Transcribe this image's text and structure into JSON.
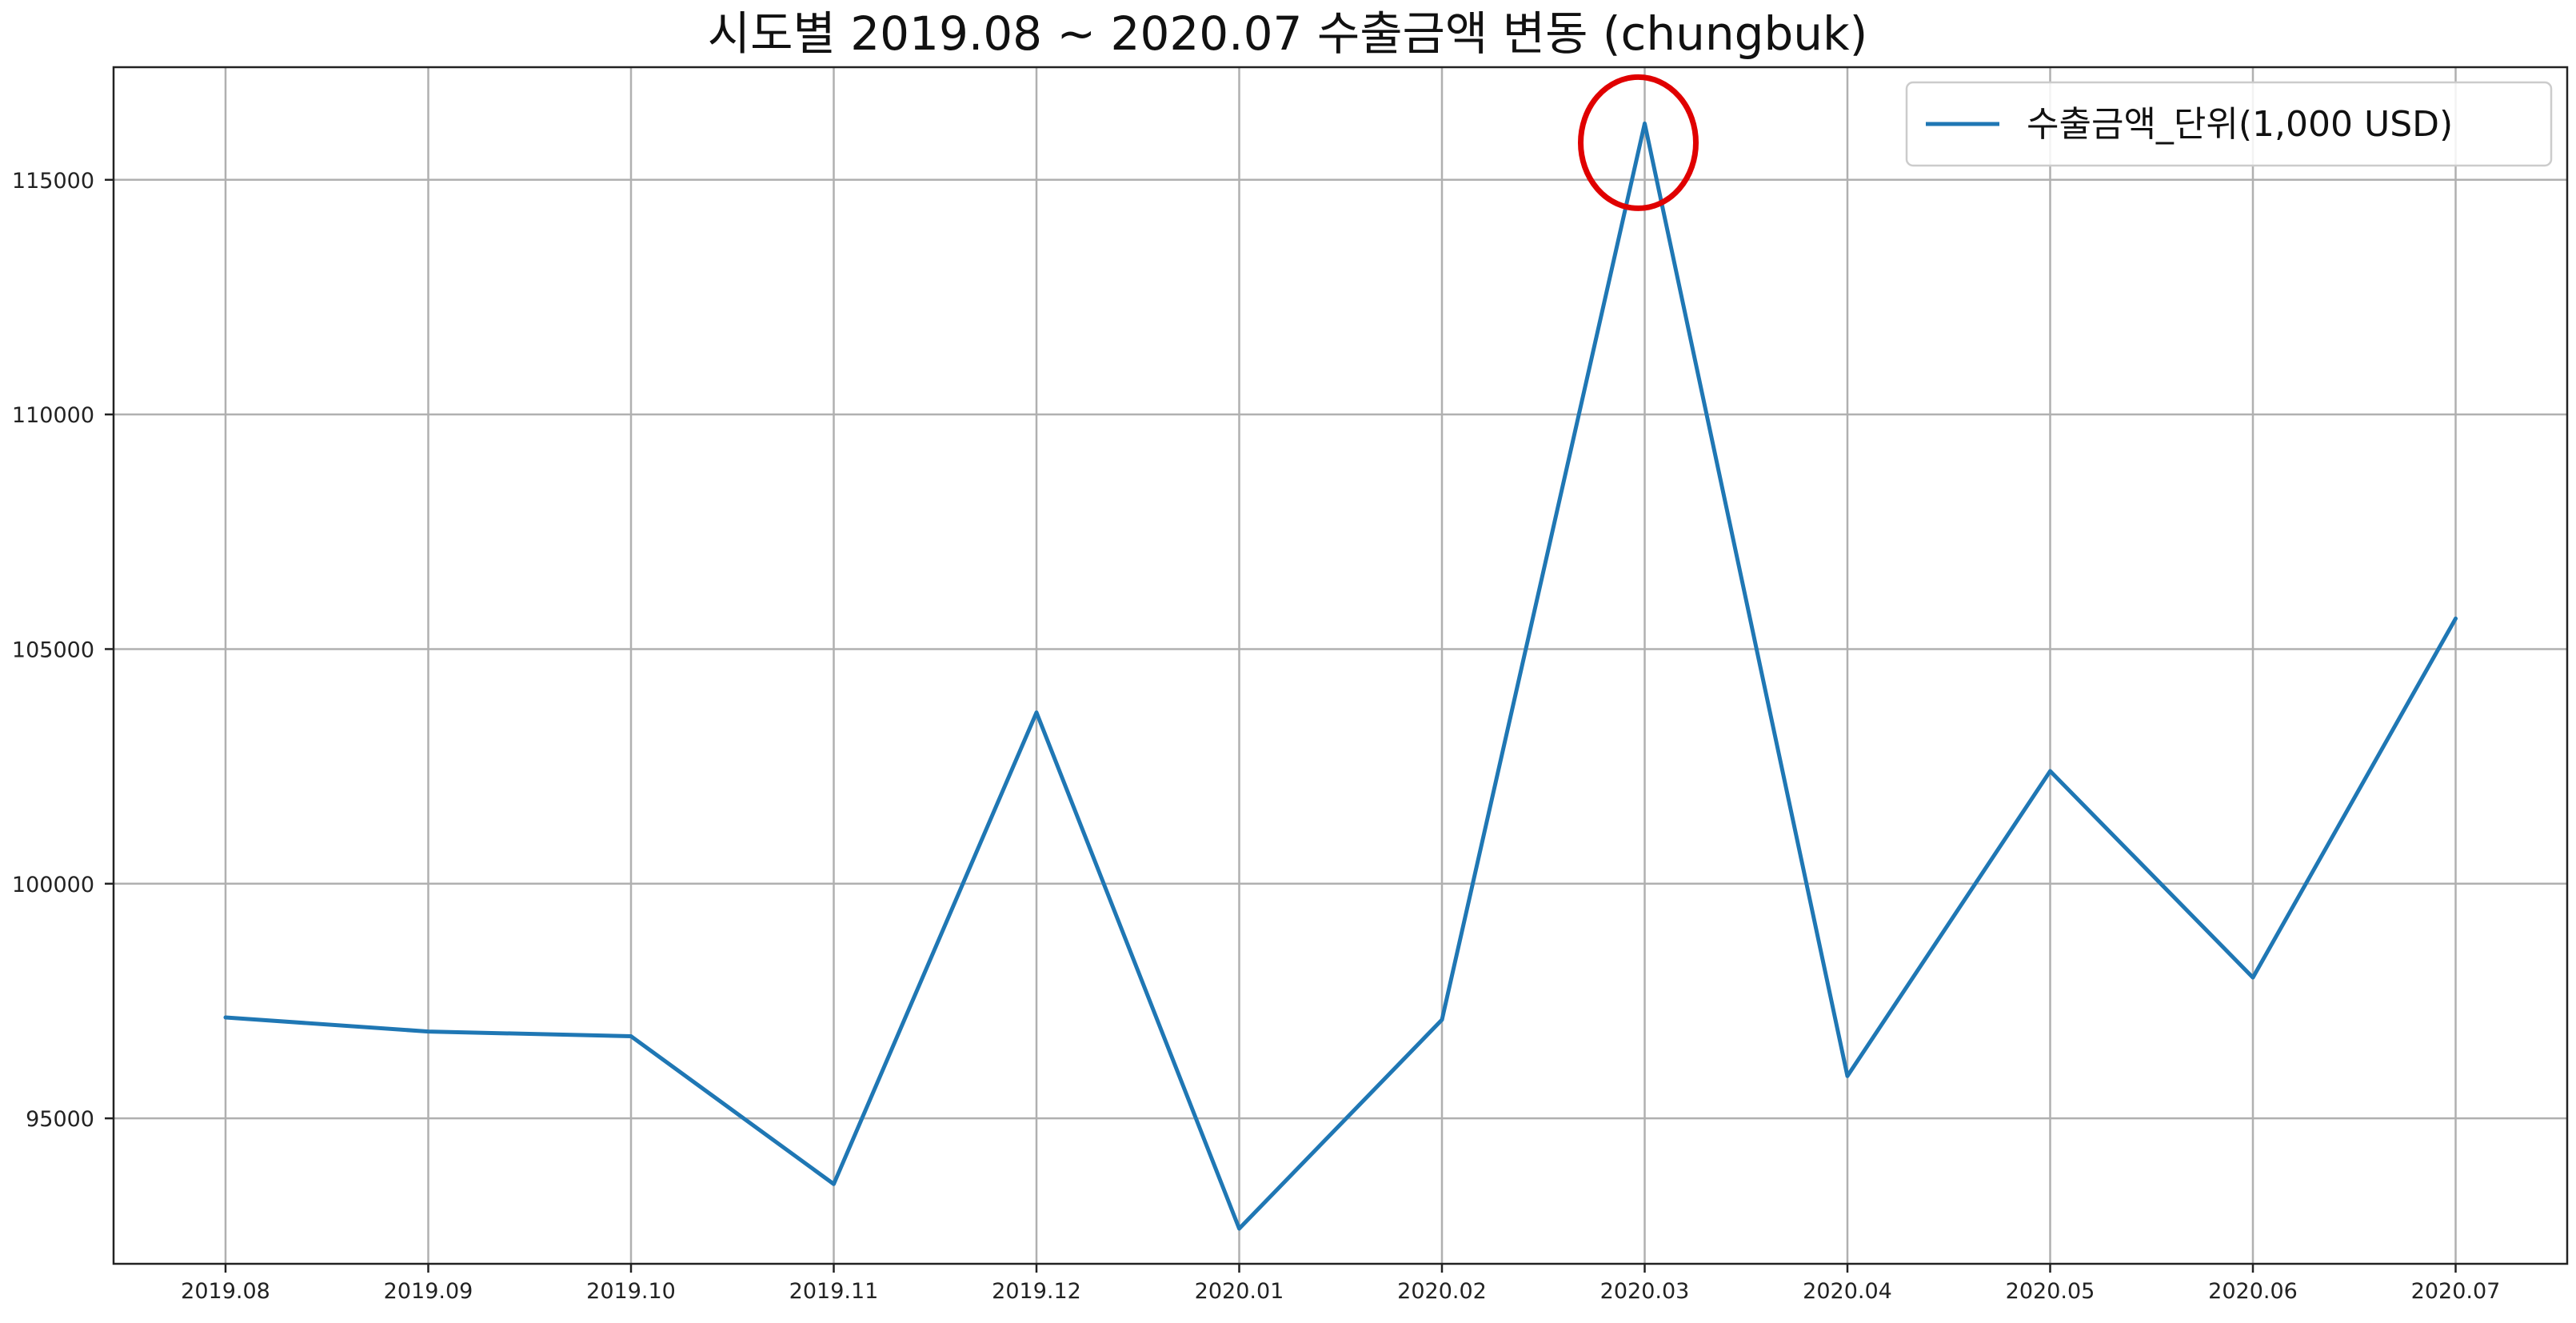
{
  "chart_data": {
    "type": "line",
    "title": "시도별 2019.08 ~ 2020.07 수출금액 변동 (chungbuk)",
    "xlabel": "",
    "ylabel": "",
    "categories": [
      "2019.08",
      "2019.09",
      "2019.10",
      "2019.11",
      "2019.12",
      "2020.01",
      "2020.02",
      "2020.03",
      "2020.04",
      "2020.05",
      "2020.06",
      "2020.07"
    ],
    "series": [
      {
        "name": "수출금액_단위(1,000 USD)",
        "color": "#1f77b4",
        "values": [
          97150,
          96850,
          96750,
          93600,
          103650,
          92650,
          97100,
          116200,
          95900,
          102400,
          98000,
          105650
        ]
      }
    ],
    "yticks": [
      95000,
      100000,
      105000,
      110000,
      115000
    ],
    "ylim": [
      91900,
      117400
    ],
    "grid": true,
    "legend_position": "top-right",
    "annotation": {
      "type": "circle",
      "category": "2020.03",
      "color": "#e00000"
    }
  }
}
